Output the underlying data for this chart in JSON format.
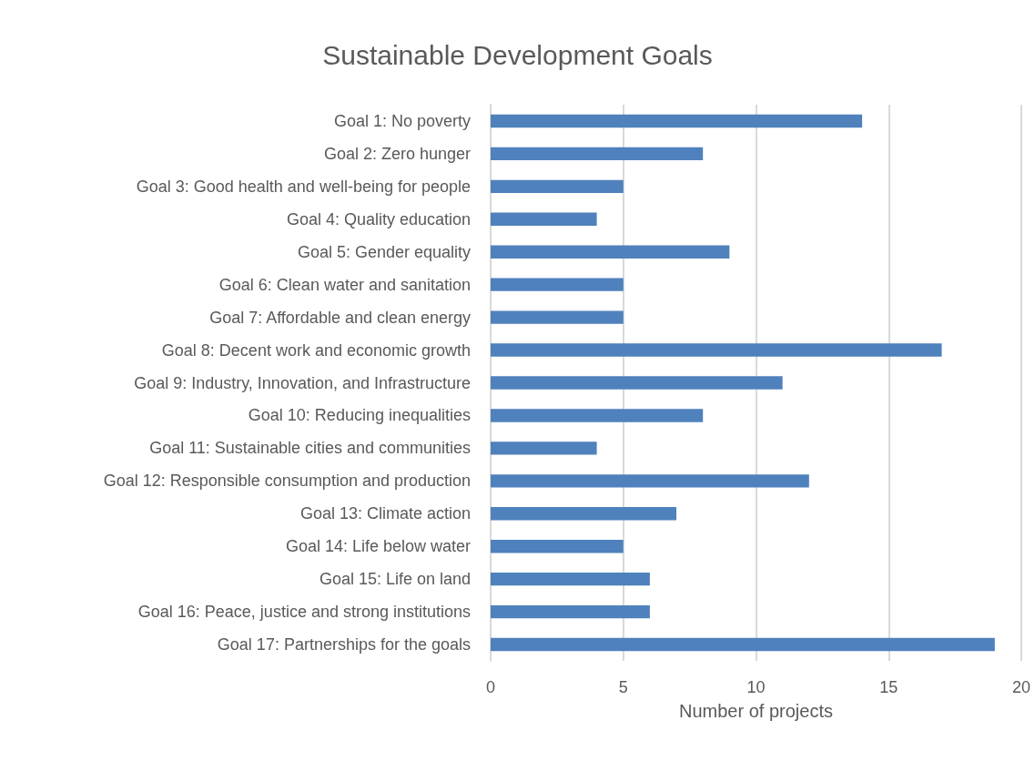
{
  "chart_data": {
    "type": "bar",
    "orientation": "horizontal",
    "title": "Sustainable Development Goals",
    "xlabel": "Number of projects",
    "categories": [
      "Goal 1: No poverty",
      "Goal 2: Zero hunger",
      "Goal 3: Good health and well-being for people",
      "Goal 4: Quality education",
      "Goal 5: Gender equality",
      "Goal 6: Clean water and sanitation",
      "Goal 7: Affordable and clean energy",
      "Goal 8: Decent work and economic growth",
      "Goal 9: Industry, Innovation, and Infrastructure",
      "Goal 10: Reducing inequalities",
      "Goal 11: Sustainable cities and communities",
      "Goal 12: Responsible consumption and production",
      "Goal 13: Climate action",
      "Goal 14: Life below water",
      "Goal 15: Life on land",
      "Goal 16: Peace, justice and strong institutions",
      "Goal 17: Partnerships for the goals"
    ],
    "values": [
      14,
      8,
      5,
      4,
      9,
      5,
      5,
      17,
      11,
      8,
      4,
      12,
      7,
      5,
      6,
      6,
      19
    ],
    "color": "#4f81bd",
    "xlim": [
      0,
      20
    ],
    "xticks": [
      0,
      5,
      10,
      15,
      20
    ],
    "grid": "x"
  }
}
